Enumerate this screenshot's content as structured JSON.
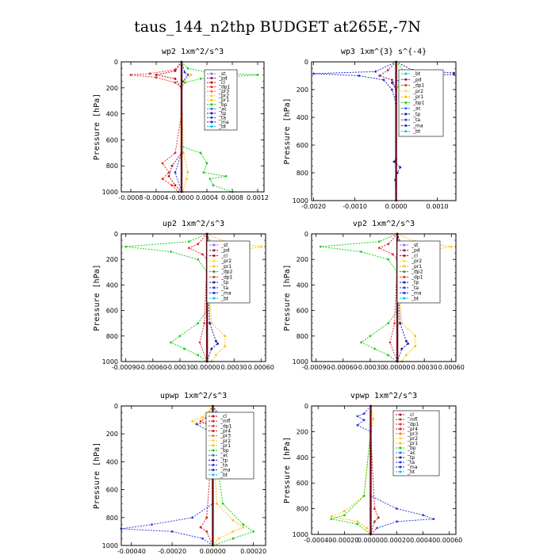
{
  "figure_title": "taus_144_n2thp  BUDGET at265E,-7N",
  "colors": {
    "bt": "#00c8e6",
    "ma": "#1e2fd0",
    "ta": "#3040e0",
    "tp": "#2020a0",
    "ac": "#3070f0",
    "bp1": "#22cc22",
    "pr1": "#ffc000",
    "pr2": "#ffd24a",
    "dp1": "#e83030",
    "cl": "#b01010",
    "pd": "#8a1e5a",
    "st": "#9966ff",
    "dp2": "#20a040",
    "mfl": "#c03030",
    "pr3": "#ff7a00",
    "pr4": "#cc2222",
    "core": "#6b0e1e",
    "bpv": "#18d018"
  },
  "chart_data": [
    {
      "type": "line",
      "title": "wp2  1xm^2/s^3",
      "ylabel": "Pressure [hPa]",
      "xlim": [
        -0.00095,
        0.0013
      ],
      "ylim": [
        1000,
        0
      ],
      "yticks": [
        0,
        200,
        400,
        600,
        800,
        1000
      ],
      "xtick_labels": [
        "-0.0008",
        "-0.0004",
        "-0.0000",
        "0.0004",
        "0.0008",
        "0.0012"
      ],
      "xtick_values": [
        -0.0008,
        -0.0004,
        0.0,
        0.0004,
        0.0008,
        0.0012
      ],
      "legend": [
        "_st",
        "_pd",
        "_cl",
        "_dp1",
        "_pr3",
        "_pr2",
        "_pr1",
        "_bp",
        "_ac",
        "_tp",
        "_ta",
        "_ma",
        "_bt"
      ],
      "series": [
        {
          "key": "bpv",
          "p": [
            0,
            50,
            80,
            100,
            130,
            160,
            200,
            400,
            650,
            700,
            780,
            850,
            880,
            900,
            950,
            1000
          ],
          "v": [
            0,
            0.0001,
            0.0004,
            0.0012,
            0.0003,
            5e-05,
            0,
            0,
            0,
            0.0003,
            0.0004,
            0.00035,
            0.0007,
            0.00045,
            0.0005,
            0.0008
          ]
        },
        {
          "key": "dp1",
          "p": [
            0,
            60,
            90,
            100,
            120,
            160,
            200,
            400,
            700,
            780,
            850,
            900,
            950,
            1000
          ],
          "v": [
            0,
            -0.0001,
            -0.0005,
            -0.0008,
            -0.0004,
            -0.0001,
            0,
            0,
            -0.0001,
            -0.0003,
            -0.0002,
            -0.0003,
            -0.00015,
            -5e-05
          ]
        },
        {
          "key": "cl",
          "p": [
            0,
            70,
            100,
            130,
            200,
            700,
            800,
            880,
            950,
            1000
          ],
          "v": [
            0,
            -0.0001,
            -0.0004,
            -0.0001,
            0,
            0,
            -0.00015,
            -0.0002,
            -0.0001,
            0
          ]
        },
        {
          "key": "pr1",
          "p": [
            0,
            80,
            100,
            140,
            200,
            700,
            850,
            900,
            1000
          ],
          "v": [
            0,
            5e-05,
            0.00015,
            5e-05,
            0,
            3e-05,
            0.0001,
            8e-05,
            2e-05
          ]
        },
        {
          "key": "ta",
          "p": [
            0,
            80,
            100,
            150,
            200,
            700,
            850,
            1000
          ],
          "v": [
            0,
            5e-05,
            0.0001,
            2e-05,
            0,
            0,
            -0.0001,
            0
          ]
        },
        {
          "key": "core",
          "p": [
            0,
            1000
          ],
          "v": [
            0,
            0
          ]
        }
      ]
    },
    {
      "type": "line",
      "title": "wp3  1xm^{3} s^{-4}",
      "ylabel": "Pressure [hPa]",
      "xlim": [
        -0.00205,
        0.00145
      ],
      "ylim": [
        1000,
        0
      ],
      "yticks": [
        0,
        200,
        400,
        600,
        800,
        1000
      ],
      "xtick_labels": [
        "-0.0020",
        "-0.0010",
        "0.0000",
        "0.0010"
      ],
      "xtick_values": [
        -0.002,
        -0.001,
        0.0,
        0.001
      ],
      "legend": [
        "_bt",
        "_pd",
        "_dp1",
        "_pr2",
        "_pr1",
        "_bp1",
        "_ac",
        "_tp",
        "_ta",
        "_ma",
        "_bt"
      ],
      "series": [
        {
          "key": "tp",
          "p": [
            0,
            60,
            80,
            90,
            100,
            120,
            150,
            200,
            250,
            300,
            700,
            720,
            760,
            800,
            850,
            1000
          ],
          "v": [
            0,
            0.0004,
            0.0014,
            0.0014,
            0.0005,
            0.0002,
            -0.0001,
            0,
            0,
            0,
            0,
            -5e-05,
            0.0001,
            3e-05,
            -2e-05,
            0
          ]
        },
        {
          "key": "ma",
          "p": [
            0,
            70,
            85,
            100,
            130,
            200,
            300
          ],
          "v": [
            0,
            -0.0005,
            -0.002,
            -0.0009,
            -0.0003,
            -0.0001,
            0
          ]
        },
        {
          "key": "bpv",
          "p": [
            0,
            70,
            100,
            120,
            160,
            200
          ],
          "v": [
            0,
            0.0002,
            0.0005,
            0.0003,
            0.0001,
            0
          ]
        },
        {
          "key": "pr1",
          "p": [
            0,
            80,
            110,
            150,
            200
          ],
          "v": [
            0,
            0.0001,
            0.0003,
            0.0001,
            0
          ]
        },
        {
          "key": "pd",
          "p": [
            0,
            60,
            100,
            130,
            200
          ],
          "v": [
            0,
            -0.0002,
            -0.0004,
            -0.0001,
            0
          ]
        },
        {
          "key": "core",
          "p": [
            0,
            1000
          ],
          "v": [
            0,
            0
          ]
        }
      ]
    },
    {
      "type": "line",
      "title": "up2  1xm^2/s^3",
      "ylabel": "Pressure [hPa]",
      "xlim": [
        -0.00095,
        0.00065
      ],
      "ylim": [
        1000,
        0
      ],
      "yticks": [
        0,
        200,
        400,
        600,
        800,
        1000
      ],
      "xtick_labels": [
        "-0.00090",
        "-0.00060",
        "-0.00030",
        "0.00000",
        "0.00030",
        "0.00060"
      ],
      "xtick_values": [
        -0.0009,
        -0.0006,
        -0.0003,
        0.0,
        0.0003,
        0.0006
      ],
      "legend": [
        "_st",
        "_pd",
        "_cl",
        "_pr2",
        "_pr1",
        "_dp2",
        "_dp1",
        "_tp",
        "_ta",
        "_ma",
        "_bt"
      ],
      "series": [
        {
          "key": "bpv",
          "p": [
            0,
            60,
            100,
            140,
            200,
            300,
            400,
            600,
            700,
            800,
            850,
            900,
            950,
            1000
          ],
          "v": [
            0,
            -0.0002,
            -0.0009,
            -0.0004,
            -0.0001,
            0,
            0,
            0,
            -0.0001,
            -0.0003,
            -0.0004,
            -0.00025,
            -0.0001,
            0
          ]
        },
        {
          "key": "pr1",
          "p": [
            0,
            60,
            100,
            140,
            200,
            700,
            800,
            880,
            950,
            1000
          ],
          "v": [
            0,
            0.0002,
            0.0006,
            0.0003,
            0,
            5e-05,
            0.0002,
            0.0002,
            0.0001,
            5e-05
          ]
        },
        {
          "key": "dp1",
          "p": [
            0,
            80,
            110,
            160,
            200,
            700,
            850,
            1000
          ],
          "v": [
            0,
            -0.0001,
            -0.0002,
            -5e-05,
            0,
            -3e-05,
            -8e-05,
            0
          ]
        },
        {
          "key": "tp",
          "p": [
            0,
            100,
            200,
            700,
            840,
            860,
            900,
            1000
          ],
          "v": [
            0,
            5e-05,
            0,
            3e-05,
            0.0001,
            0.00012,
            5e-05,
            0
          ]
        },
        {
          "key": "core",
          "p": [
            0,
            1000
          ],
          "v": [
            0,
            0
          ]
        }
      ]
    },
    {
      "type": "line",
      "title": "vp2  1xm^2/s^3",
      "ylabel": "Pressure [hPa]",
      "xlim": [
        -0.00095,
        0.00065
      ],
      "ylim": [
        1000,
        0
      ],
      "yticks": [
        0,
        200,
        400,
        600,
        800,
        1000
      ],
      "xtick_labels": [
        "-0.00090",
        "-0.00060",
        "-0.00030",
        "0.00000",
        "0.00030",
        "0.00060"
      ],
      "xtick_values": [
        -0.0009,
        -0.0006,
        -0.0003,
        0.0,
        0.0003,
        0.0006
      ],
      "legend": [
        "_st",
        "_pd",
        "_cl",
        "_pr2",
        "_pr1",
        "_dp2",
        "_dp1",
        "_tp",
        "_ta",
        "_ma",
        "_bt"
      ],
      "series": [
        {
          "key": "bpv",
          "p": [
            0,
            60,
            100,
            140,
            200,
            300,
            400,
            600,
            700,
            800,
            850,
            900,
            950,
            1000
          ],
          "v": [
            0,
            -0.0002,
            -0.00085,
            -0.0004,
            -0.0001,
            0,
            0,
            0,
            -0.0001,
            -0.0003,
            -0.0004,
            -0.00025,
            -0.0001,
            0
          ]
        },
        {
          "key": "pr1",
          "p": [
            0,
            60,
            100,
            140,
            200,
            700,
            800,
            880,
            950,
            1000
          ],
          "v": [
            0,
            0.0002,
            0.0006,
            0.0003,
            0,
            5e-05,
            0.0002,
            0.0002,
            0.0001,
            5e-05
          ]
        },
        {
          "key": "dp1",
          "p": [
            0,
            80,
            110,
            160,
            200,
            700,
            850,
            1000
          ],
          "v": [
            0,
            -0.0001,
            -0.0002,
            -5e-05,
            0,
            -3e-05,
            -8e-05,
            0
          ]
        },
        {
          "key": "tp",
          "p": [
            0,
            100,
            200,
            700,
            840,
            860,
            900,
            1000
          ],
          "v": [
            0,
            5e-05,
            0,
            3e-05,
            0.0001,
            0.00012,
            5e-05,
            0
          ]
        },
        {
          "key": "core",
          "p": [
            0,
            1000
          ],
          "v": [
            0,
            0
          ]
        }
      ]
    },
    {
      "type": "line",
      "title": "upwp  1xm^2/s^3",
      "ylabel": "Pressure [hPa]",
      "xlim": [
        -0.00045,
        0.00026
      ],
      "ylim": [
        1000,
        0
      ],
      "yticks": [
        0,
        200,
        400,
        600,
        800,
        1000
      ],
      "xtick_labels": [
        "-0.00040",
        "-0.00020",
        "0.00000",
        "0.00020"
      ],
      "xtick_values": [
        -0.0004,
        -0.0002,
        0.0,
        0.0002
      ],
      "legend": [
        "_cl",
        "_mfl",
        "_dp1",
        "_pr4",
        "_pr3",
        "_pr2",
        "_pr1",
        "_bp",
        "_ac",
        "_tp",
        "_ta",
        "_ma",
        "_bt"
      ],
      "series": [
        {
          "key": "ta",
          "p": [
            0,
            60,
            90,
            100,
            130,
            180,
            200,
            700,
            800,
            850,
            880,
            900,
            950,
            1000
          ],
          "v": [
            0,
            3e-05,
            0.00015,
            0.0001,
            -8e-05,
            -2e-05,
            0,
            0,
            -0.0001,
            -0.0003,
            -0.00045,
            -0.0002,
            -5e-05,
            0
          ]
        },
        {
          "key": "pr1",
          "p": [
            0,
            80,
            110,
            150,
            200,
            700,
            820,
            870,
            900,
            950,
            1000
          ],
          "v": [
            0,
            -5e-05,
            -0.0001,
            3e-05,
            0,
            2e-05,
            0.0001,
            0.00015,
            0.0001,
            3e-05,
            0
          ]
        },
        {
          "key": "bpv",
          "p": [
            0,
            100,
            200,
            700,
            850,
            900,
            950,
            1000
          ],
          "v": [
            0,
            3e-05,
            0,
            5e-05,
            0.00015,
            0.0002,
            0.0001,
            0
          ]
        },
        {
          "key": "pr4",
          "p": [
            0,
            80,
            110,
            150,
            200,
            800,
            870,
            900,
            1000
          ],
          "v": [
            0,
            -3e-05,
            -6e-05,
            2e-05,
            0,
            -3e-05,
            -6e-05,
            -3e-05,
            0
          ]
        },
        {
          "key": "core",
          "p": [
            0,
            1000
          ],
          "v": [
            0,
            0
          ]
        }
      ]
    },
    {
      "type": "line",
      "title": "vpwp  1xm^2/s^3",
      "ylabel": "Pressure [hPa]",
      "xlim": [
        -0.00045,
        0.00065
      ],
      "ylim": [
        1000,
        0
      ],
      "yticks": [
        0,
        200,
        400,
        600,
        800,
        1000
      ],
      "xtick_labels": [
        "-0.00040",
        "-0.00020",
        "0.00000",
        "0.00020",
        "0.00040",
        "0.00060"
      ],
      "xtick_values": [
        -0.0004,
        -0.0002,
        0.0,
        0.0002,
        0.0004,
        0.0006
      ],
      "legend": [
        "_cl",
        "_mfl",
        "_dp1",
        "_pr4",
        "_pr3",
        "_pr2",
        "_pr1",
        "_bp",
        "_ac",
        "_tp",
        "_ta",
        "_ma",
        "_bt"
      ],
      "series": [
        {
          "key": "ta",
          "p": [
            0,
            60,
            80,
            110,
            150,
            200,
            700,
            800,
            850,
            880,
            900,
            950,
            1000
          ],
          "v": [
            0,
            -5e-05,
            -0.0001,
            -5e-05,
            -0.0001,
            0,
            0,
            0.0002,
            0.0004,
            0.00048,
            0.0002,
            5e-05,
            0
          ]
        },
        {
          "key": "pr1",
          "p": [
            0,
            100,
            200,
            700,
            820,
            860,
            900,
            950,
            1000
          ],
          "v": [
            0,
            2e-05,
            0,
            -5e-05,
            -0.0002,
            -0.0003,
            -0.0001,
            -3e-05,
            0
          ]
        },
        {
          "key": "bpv",
          "p": [
            0,
            200,
            700,
            850,
            880,
            920,
            1000
          ],
          "v": [
            0,
            0,
            -5e-05,
            -0.0002,
            -0.0003,
            -0.0001,
            0
          ]
        },
        {
          "key": "pr4",
          "p": [
            0,
            200,
            800,
            870,
            900,
            1000
          ],
          "v": [
            0,
            0,
            3e-05,
            6e-05,
            3e-05,
            0
          ]
        },
        {
          "key": "core",
          "p": [
            0,
            1000
          ],
          "v": [
            0,
            0
          ]
        }
      ]
    }
  ]
}
